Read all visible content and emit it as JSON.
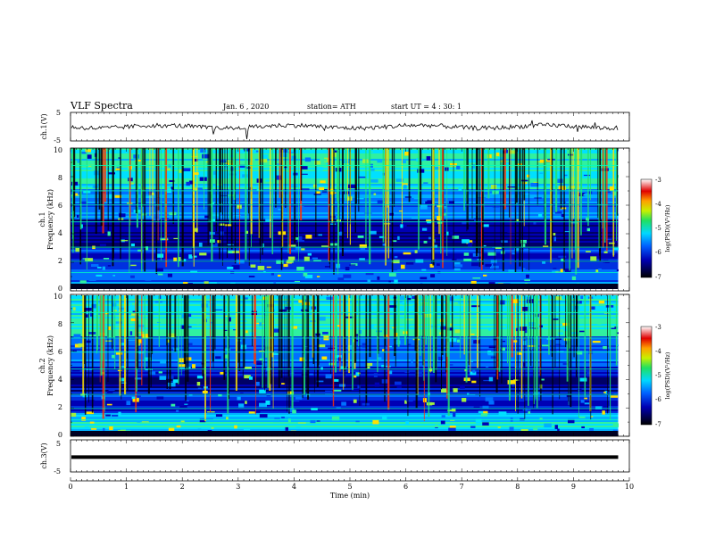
{
  "header": {
    "title": "VLF Spectra",
    "date": "Jan. 6 , 2020",
    "station": "station= ATH",
    "start": "start UT = 4 : 30: 1"
  },
  "chart_data": [
    {
      "type": "line",
      "title": "",
      "ylabel": "ch.1(V)",
      "ylim": [
        -5,
        5
      ],
      "yticks": [
        "5",
        "-5"
      ],
      "xlim": [
        0,
        10
      ],
      "description_values": "waveform hovering near 0 V with spikes to about ±3 V"
    },
    {
      "type": "heatmap",
      "ylabel": "ch.1\nFrequency (kHz)",
      "ylim": [
        0,
        10
      ],
      "yticks": [
        "0",
        "2",
        "4",
        "6",
        "8",
        "10"
      ],
      "xlim": [
        0,
        9.8
      ],
      "colorbar": {
        "label": "log(PSD)(V²/Hz)",
        "range": [
          -7,
          -3
        ],
        "ticks": [
          "-3",
          "-4",
          "-5",
          "-6",
          "-7"
        ]
      }
    },
    {
      "type": "heatmap",
      "ylabel": "ch.2\nFrequency (kHz)",
      "ylim": [
        0,
        10
      ],
      "yticks": [
        "0",
        "2",
        "4",
        "6",
        "8",
        "10"
      ],
      "xlim": [
        0,
        9.8
      ],
      "colorbar": {
        "label": "log(PSD)(V²/Hz)",
        "range": [
          -7,
          -3
        ],
        "ticks": [
          "-3",
          "-4",
          "-5",
          "-6",
          "-7"
        ]
      }
    },
    {
      "type": "line",
      "ylabel": "ch.3(V)",
      "ylim": [
        -5,
        5
      ],
      "yticks": [
        "5",
        "-5"
      ],
      "xlim": [
        0,
        9.8
      ],
      "values_note": "constant at about -0.7 V"
    }
  ],
  "xaxis": {
    "label": "Time (min)",
    "ticks": [
      "0",
      "1",
      "2",
      "3",
      "4",
      "5",
      "6",
      "7",
      "8",
      "9",
      "10"
    ],
    "range": [
      0,
      10
    ]
  },
  "colors": {
    "low": "#000066",
    "mid": "#00c8ff",
    "high": "#ff2200"
  }
}
